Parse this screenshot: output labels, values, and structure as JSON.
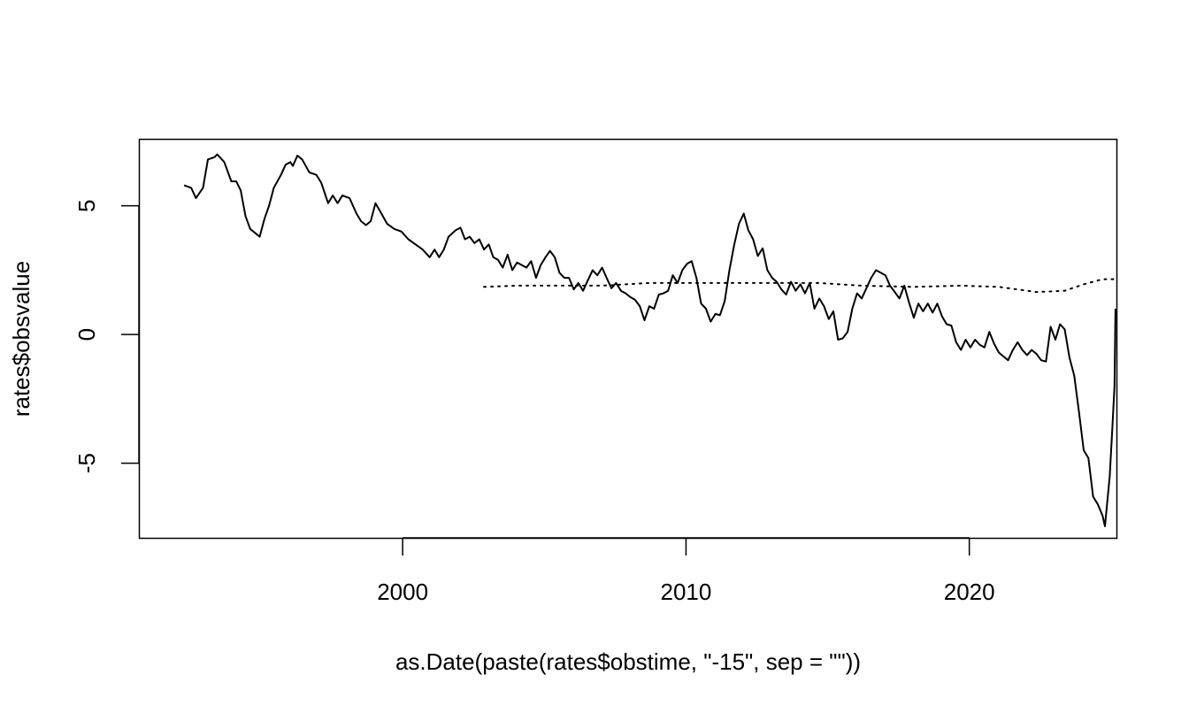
{
  "chart_data": {
    "type": "line",
    "title": "",
    "xlabel": "as.Date(paste(rates$obstime, \"-15\", sep = \"\"))",
    "ylabel": "rates$obsvalue",
    "xlim": [
      "1990-09-10",
      "2025-03-12"
    ],
    "ylim": [
      -7.9,
      7.6
    ],
    "x_ticks": [
      {
        "label": "2000",
        "date": "2000-01-01"
      },
      {
        "label": "2010",
        "date": "2010-01-01"
      },
      {
        "label": "2020",
        "date": "2020-01-01"
      }
    ],
    "y_ticks": [
      {
        "label": "-5",
        "value": -5
      },
      {
        "label": "0",
        "value": 0
      },
      {
        "label": "5",
        "value": 5
      }
    ],
    "grid": false,
    "legend": "none",
    "series": [
      {
        "style": "solid",
        "color": "#000000",
        "points": [
          [
            "1992-04-15",
            5.8
          ],
          [
            "1992-07-15",
            5.7
          ],
          [
            "1992-09-15",
            5.3
          ],
          [
            "1992-12-15",
            5.7
          ],
          [
            "1993-02-15",
            6.8
          ],
          [
            "1993-05-15",
            6.9
          ],
          [
            "1993-06-15",
            7.0
          ],
          [
            "1993-09-15",
            6.7
          ],
          [
            "1993-12-15",
            5.95
          ],
          [
            "1994-02-15",
            5.95
          ],
          [
            "1994-04-15",
            5.6
          ],
          [
            "1994-06-15",
            4.6
          ],
          [
            "1994-08-15",
            4.1
          ],
          [
            "1994-10-15",
            3.95
          ],
          [
            "1994-12-15",
            3.8
          ],
          [
            "1995-02-15",
            4.5
          ],
          [
            "1995-04-15",
            5.0
          ],
          [
            "1995-06-15",
            5.7
          ],
          [
            "1995-09-15",
            6.2
          ],
          [
            "1995-11-15",
            6.6
          ],
          [
            "1996-01-15",
            6.7
          ],
          [
            "1996-02-15",
            6.55
          ],
          [
            "1996-04-15",
            6.95
          ],
          [
            "1996-06-15",
            6.8
          ],
          [
            "1996-09-15",
            6.3
          ],
          [
            "1996-12-15",
            6.2
          ],
          [
            "1997-02-15",
            5.9
          ],
          [
            "1997-05-15",
            5.1
          ],
          [
            "1997-07-15",
            5.4
          ],
          [
            "1997-09-15",
            5.1
          ],
          [
            "1997-11-15",
            5.4
          ],
          [
            "1998-02-15",
            5.3
          ],
          [
            "1998-05-15",
            4.7
          ],
          [
            "1998-07-15",
            4.4
          ],
          [
            "1998-09-15",
            4.25
          ],
          [
            "1998-11-15",
            4.4
          ],
          [
            "1999-01-15",
            5.1
          ],
          [
            "1999-03-15",
            4.8
          ],
          [
            "1999-06-15",
            4.3
          ],
          [
            "1999-09-15",
            4.1
          ],
          [
            "1999-12-15",
            4.0
          ],
          [
            "2000-03-15",
            3.7
          ],
          [
            "2000-06-15",
            3.5
          ],
          [
            "2000-09-15",
            3.3
          ],
          [
            "2000-12-15",
            3.0
          ],
          [
            "2001-02-15",
            3.3
          ],
          [
            "2001-04-15",
            3.0
          ],
          [
            "2001-06-15",
            3.3
          ],
          [
            "2001-08-15",
            3.8
          ],
          [
            "2001-11-15",
            4.05
          ],
          [
            "2002-01-15",
            4.15
          ],
          [
            "2002-03-15",
            3.7
          ],
          [
            "2002-05-15",
            3.8
          ],
          [
            "2002-07-15",
            3.55
          ],
          [
            "2002-09-15",
            3.7
          ],
          [
            "2002-11-15",
            3.3
          ],
          [
            "2003-01-15",
            3.5
          ],
          [
            "2003-03-15",
            3.0
          ],
          [
            "2003-05-15",
            2.9
          ],
          [
            "2003-07-15",
            2.6
          ],
          [
            "2003-09-15",
            3.1
          ],
          [
            "2003-11-15",
            2.5
          ],
          [
            "2004-01-15",
            2.8
          ],
          [
            "2004-03-15",
            2.7
          ],
          [
            "2004-05-15",
            2.6
          ],
          [
            "2004-07-15",
            2.85
          ],
          [
            "2004-09-15",
            2.2
          ],
          [
            "2004-11-15",
            2.7
          ],
          [
            "2005-01-15",
            3.0
          ],
          [
            "2005-03-15",
            3.25
          ],
          [
            "2005-05-15",
            3.0
          ],
          [
            "2005-07-15",
            2.4
          ],
          [
            "2005-09-15",
            2.2
          ],
          [
            "2005-11-15",
            2.2
          ],
          [
            "2006-01-15",
            1.75
          ],
          [
            "2006-03-15",
            2.0
          ],
          [
            "2006-05-15",
            1.7
          ],
          [
            "2006-07-15",
            2.1
          ],
          [
            "2006-09-15",
            2.5
          ],
          [
            "2006-11-15",
            2.3
          ],
          [
            "2007-01-15",
            2.6
          ],
          [
            "2007-03-15",
            2.2
          ],
          [
            "2007-05-15",
            1.8
          ],
          [
            "2007-07-15",
            2.0
          ],
          [
            "2007-09-15",
            1.7
          ],
          [
            "2007-11-15",
            1.6
          ],
          [
            "2008-01-15",
            1.45
          ],
          [
            "2008-03-15",
            1.35
          ],
          [
            "2008-05-15",
            1.1
          ],
          [
            "2008-07-15",
            0.55
          ],
          [
            "2008-09-15",
            1.1
          ],
          [
            "2008-11-15",
            1.0
          ],
          [
            "2009-01-15",
            1.55
          ],
          [
            "2009-03-15",
            1.6
          ],
          [
            "2009-05-15",
            1.7
          ],
          [
            "2009-07-15",
            2.3
          ],
          [
            "2009-09-15",
            2.0
          ],
          [
            "2009-11-15",
            2.5
          ],
          [
            "2010-01-15",
            2.75
          ],
          [
            "2010-03-15",
            2.85
          ],
          [
            "2010-05-15",
            2.2
          ],
          [
            "2010-07-15",
            1.2
          ],
          [
            "2010-09-15",
            1.0
          ],
          [
            "2010-11-15",
            0.5
          ],
          [
            "2011-01-15",
            0.8
          ],
          [
            "2011-03-15",
            0.75
          ],
          [
            "2011-05-15",
            1.3
          ],
          [
            "2011-07-15",
            2.5
          ],
          [
            "2011-09-15",
            3.5
          ],
          [
            "2011-11-15",
            4.3
          ],
          [
            "2012-01-15",
            4.7
          ],
          [
            "2012-03-15",
            4.05
          ],
          [
            "2012-05-15",
            3.7
          ],
          [
            "2012-07-15",
            3.05
          ],
          [
            "2012-09-15",
            3.35
          ],
          [
            "2012-11-15",
            2.5
          ],
          [
            "2013-01-15",
            2.2
          ],
          [
            "2013-03-15",
            2.05
          ],
          [
            "2013-05-15",
            1.75
          ],
          [
            "2013-07-15",
            1.55
          ],
          [
            "2013-09-15",
            2.05
          ],
          [
            "2013-11-15",
            1.7
          ],
          [
            "2014-01-15",
            1.95
          ],
          [
            "2014-03-15",
            1.6
          ],
          [
            "2014-05-15",
            2.0
          ],
          [
            "2014-07-15",
            1.0
          ],
          [
            "2014-09-15",
            1.4
          ],
          [
            "2014-11-15",
            1.1
          ],
          [
            "2015-01-15",
            0.6
          ],
          [
            "2015-03-15",
            0.9
          ],
          [
            "2015-05-15",
            -0.2
          ],
          [
            "2015-07-15",
            -0.15
          ],
          [
            "2015-09-15",
            0.1
          ],
          [
            "2015-11-15",
            1.0
          ],
          [
            "2016-01-15",
            1.6
          ],
          [
            "2016-03-15",
            1.4
          ],
          [
            "2016-05-15",
            1.8
          ],
          [
            "2016-07-15",
            2.2
          ],
          [
            "2016-09-15",
            2.5
          ],
          [
            "2016-11-15",
            2.4
          ],
          [
            "2017-01-15",
            2.3
          ],
          [
            "2017-03-15",
            1.9
          ],
          [
            "2017-05-15",
            1.65
          ],
          [
            "2017-07-15",
            1.4
          ],
          [
            "2017-09-15",
            1.9
          ],
          [
            "2017-11-15",
            1.25
          ],
          [
            "2018-01-15",
            0.65
          ],
          [
            "2018-03-15",
            1.2
          ],
          [
            "2018-05-15",
            0.9
          ],
          [
            "2018-07-15",
            1.2
          ],
          [
            "2018-09-15",
            0.85
          ],
          [
            "2018-11-15",
            1.2
          ],
          [
            "2019-01-15",
            0.7
          ],
          [
            "2019-03-15",
            0.4
          ],
          [
            "2019-05-15",
            0.35
          ],
          [
            "2019-07-15",
            -0.3
          ],
          [
            "2019-09-15",
            -0.6
          ],
          [
            "2019-11-15",
            -0.2
          ],
          [
            "2020-01-15",
            -0.5
          ],
          [
            "2020-03-15",
            -0.2
          ],
          [
            "2020-05-15",
            -0.4
          ],
          [
            "2020-07-15",
            -0.5
          ],
          [
            "2020-09-15",
            0.1
          ],
          [
            "2020-11-15",
            -0.35
          ],
          [
            "2021-01-15",
            -0.7
          ],
          [
            "2021-03-15",
            -0.85
          ],
          [
            "2021-05-15",
            -1.0
          ],
          [
            "2021-07-15",
            -0.6
          ],
          [
            "2021-09-15",
            -0.3
          ],
          [
            "2021-11-15",
            -0.6
          ],
          [
            "2022-01-15",
            -0.8
          ],
          [
            "2022-03-15",
            -0.6
          ],
          [
            "2022-05-15",
            -0.75
          ],
          [
            "2022-07-15",
            -1.0
          ],
          [
            "2022-09-15",
            -1.05
          ],
          [
            "2022-11-15",
            0.3
          ],
          [
            "2023-01-15",
            -0.2
          ],
          [
            "2023-03-15",
            0.4
          ],
          [
            "2023-05-15",
            0.2
          ],
          [
            "2023-07-15",
            -0.9
          ],
          [
            "2023-09-15",
            -1.6
          ],
          [
            "2023-11-15",
            -3.0
          ],
          [
            "2024-01-15",
            -4.5
          ],
          [
            "2024-03-15",
            -4.8
          ],
          [
            "2024-05-15",
            -6.3
          ],
          [
            "2024-07-15",
            -6.6
          ],
          [
            "2024-09-15",
            -7.05
          ],
          [
            "2024-10-15",
            -7.45
          ],
          [
            "2024-12-15",
            -5.5
          ],
          [
            "2025-01-15",
            -3.8
          ],
          [
            "2025-02-15",
            -2.0
          ],
          [
            "2025-02-28",
            1.0
          ]
        ]
      },
      {
        "style": "dotted",
        "color": "#000000",
        "points": [
          [
            "2002-11-15",
            1.85
          ],
          [
            "2004-01-15",
            1.9
          ],
          [
            "2005-06-15",
            1.9
          ],
          [
            "2007-01-15",
            1.9
          ],
          [
            "2008-09-15",
            2.0
          ],
          [
            "2010-03-15",
            2.0
          ],
          [
            "2011-09-15",
            2.0
          ],
          [
            "2013-03-15",
            2.0
          ],
          [
            "2014-09-15",
            2.0
          ],
          [
            "2016-03-15",
            1.9
          ],
          [
            "2018-01-15",
            1.85
          ],
          [
            "2019-09-15",
            1.9
          ],
          [
            "2021-01-15",
            1.85
          ],
          [
            "2022-05-15",
            1.65
          ],
          [
            "2023-05-15",
            1.7
          ],
          [
            "2024-01-15",
            1.95
          ],
          [
            "2024-09-15",
            2.15
          ],
          [
            "2025-02-28",
            2.15
          ]
        ]
      }
    ]
  }
}
